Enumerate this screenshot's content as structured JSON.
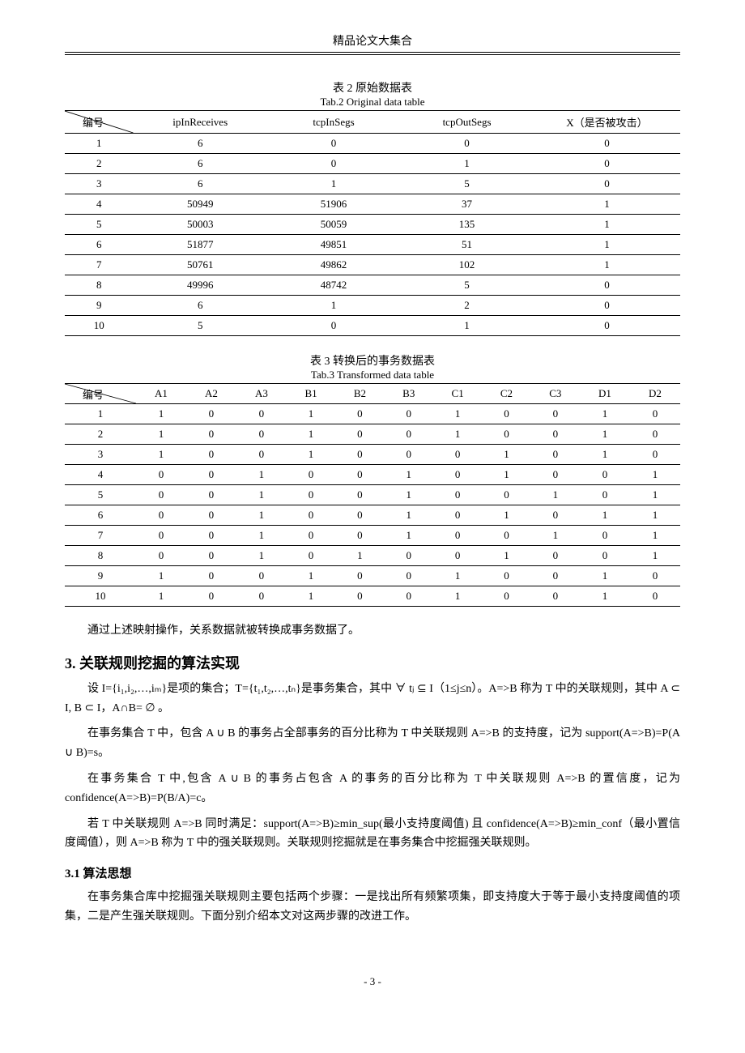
{
  "header": {
    "title": "精品论文大集合"
  },
  "table2": {
    "caption_cn": "表 2   原始数据表",
    "caption_en": "Tab.2 Original data table",
    "corner_label": "编号",
    "columns": [
      "ipInReceives",
      "tcpInSegs",
      "tcpOutSegs",
      "X（是否被攻击）"
    ],
    "rows": [
      [
        "1",
        "6",
        "0",
        "0",
        "0"
      ],
      [
        "2",
        "6",
        "0",
        "1",
        "0"
      ],
      [
        "3",
        "6",
        "1",
        "5",
        "0"
      ],
      [
        "4",
        "50949",
        "51906",
        "37",
        "1"
      ],
      [
        "5",
        "50003",
        "50059",
        "135",
        "1"
      ],
      [
        "6",
        "51877",
        "49851",
        "51",
        "1"
      ],
      [
        "7",
        "50761",
        "49862",
        "102",
        "1"
      ],
      [
        "8",
        "49996",
        "48742",
        "5",
        "0"
      ],
      [
        "9",
        "6",
        "1",
        "2",
        "0"
      ],
      [
        "10",
        "5",
        "0",
        "1",
        "0"
      ]
    ],
    "col_widths": [
      "80px",
      "160px",
      "160px",
      "160px",
      "180px"
    ]
  },
  "table3": {
    "caption_cn": "表 3   转换后的事务数据表",
    "caption_en": "Tab.3   Transformed data table",
    "corner_label": "编号",
    "columns": [
      "A1",
      "A2",
      "A3",
      "B1",
      "B2",
      "B3",
      "C1",
      "C2",
      "C3",
      "D1",
      "D2"
    ],
    "rows": [
      [
        "1",
        "1",
        "0",
        "0",
        "1",
        "0",
        "0",
        "1",
        "0",
        "0",
        "1",
        "0"
      ],
      [
        "2",
        "1",
        "0",
        "0",
        "1",
        "0",
        "0",
        "1",
        "0",
        "0",
        "1",
        "0"
      ],
      [
        "3",
        "1",
        "0",
        "0",
        "1",
        "0",
        "0",
        "0",
        "1",
        "0",
        "1",
        "0"
      ],
      [
        "4",
        "0",
        "0",
        "1",
        "0",
        "0",
        "1",
        "0",
        "1",
        "0",
        "0",
        "1"
      ],
      [
        "5",
        "0",
        "0",
        "1",
        "0",
        "0",
        "1",
        "0",
        "0",
        "1",
        "0",
        "1"
      ],
      [
        "6",
        "0",
        "0",
        "1",
        "0",
        "0",
        "1",
        "0",
        "1",
        "0",
        "1",
        "1"
      ],
      [
        "7",
        "0",
        "0",
        "1",
        "0",
        "0",
        "1",
        "0",
        "0",
        "1",
        "0",
        "1"
      ],
      [
        "8",
        "0",
        "0",
        "1",
        "0",
        "1",
        "0",
        "0",
        "1",
        "0",
        "0",
        "1"
      ],
      [
        "9",
        "1",
        "0",
        "0",
        "1",
        "0",
        "0",
        "1",
        "0",
        "0",
        "1",
        "0"
      ],
      [
        "10",
        "1",
        "0",
        "0",
        "1",
        "0",
        "0",
        "1",
        "0",
        "0",
        "1",
        "0"
      ]
    ]
  },
  "p1": "通过上述映射操作，关系数据就被转换成事务数据了。",
  "section3_title": "3.  关联规则挖掘的算法实现",
  "p2": "设 I={i₁,i₂,…,iₘ}是项的集合；T={t₁,t₂,…,tₙ}是事务集合，其中 ∀  tⱼ   ⊆ I（1≤j≤n）。A=>B 称为 T 中的关联规则，其中 A ⊂ I,   B ⊂ I，A∩B= ∅ 。",
  "p3": "在事务集合 T 中，包含 A ∪ B 的事务占全部事务的百分比称为 T 中关联规则 A=>B 的支持度，记为 support(A=>B)=P(A ∪ B)=s。",
  "p4": "在事务集合 T 中,包含 A ∪ B 的事务占包含 A 的事务的百分比称为 T 中关联规则 A=>B 的置信度，记为 confidence(A=>B)=P(B/A)=c。",
  "p5": "若 T 中关联规则 A=>B 同时满足：support(A=>B)≥min_sup(最小支持度阈值) 且 confidence(A=>B)≥min_conf（最小置信度阈值），则 A=>B 称为 T 中的强关联规则。关联规则挖掘就是在事务集合中挖掘强关联规则。",
  "section31_title": "3.1 算法思想",
  "p6": "在事务集合库中挖掘强关联规则主要包括两个步骤：一是找出所有频繁项集，即支持度大于等于最小支持度阈值的项集，二是产生强关联规则。下面分别介绍本文对这两步骤的改进工作。",
  "page_num": "- 3 -"
}
